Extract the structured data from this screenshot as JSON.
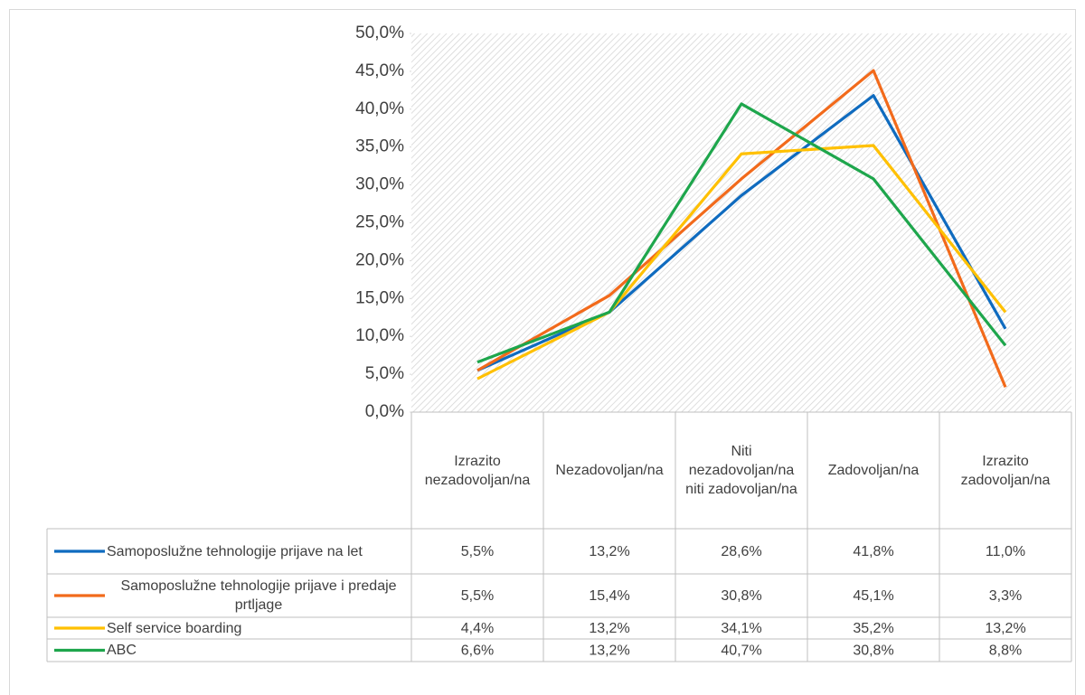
{
  "chart_data": {
    "type": "line",
    "categories": [
      "Izrazito nezadovoljan/na",
      "Nezadovoljan/na",
      "Niti nezadovoljan/na niti zadovoljan/na",
      "Zadovoljan/na",
      "Izrazito zadovoljan/na"
    ],
    "series": [
      {
        "name": "Samoposlužne tehnologije prijave na let",
        "color": "#0f6bbf",
        "values": [
          5.5,
          13.2,
          28.6,
          41.8,
          11.0
        ],
        "value_labels": [
          "5,5%",
          "13,2%",
          "28,6%",
          "41,8%",
          "11,0%"
        ]
      },
      {
        "name": "Samoposlužne tehnologije prijave i predaje prtljage",
        "color": "#f26a1b",
        "values": [
          5.5,
          15.4,
          30.8,
          45.1,
          3.3
        ],
        "value_labels": [
          "5,5%",
          "15,4%",
          "30,8%",
          "45,1%",
          "3,3%"
        ]
      },
      {
        "name": "Self service boarding",
        "color": "#ffc000",
        "values": [
          4.4,
          13.2,
          34.1,
          35.2,
          13.2
        ],
        "value_labels": [
          "4,4%",
          "13,2%",
          "34,1%",
          "35,2%",
          "13,2%"
        ]
      },
      {
        "name": "ABC",
        "color": "#1ea64c",
        "values": [
          6.6,
          13.2,
          40.7,
          30.8,
          8.8
        ],
        "value_labels": [
          "6,6%",
          "13,2%",
          "40,7%",
          "30,8%",
          "8,8%"
        ]
      }
    ],
    "ylim": [
      0,
      50
    ],
    "yticks": [
      {
        "value": 0,
        "label": "0,0%"
      },
      {
        "value": 5,
        "label": "5,0%"
      },
      {
        "value": 10,
        "label": "10,0%"
      },
      {
        "value": 15,
        "label": "15,0%"
      },
      {
        "value": 20,
        "label": "20,0%"
      },
      {
        "value": 25,
        "label": "25,0%"
      },
      {
        "value": 30,
        "label": "30,0%"
      },
      {
        "value": 35,
        "label": "35,0%"
      },
      {
        "value": 40,
        "label": "40,0%"
      },
      {
        "value": 45,
        "label": "45,0%"
      },
      {
        "value": 50,
        "label": "50,0%"
      }
    ],
    "data_table": true
  }
}
